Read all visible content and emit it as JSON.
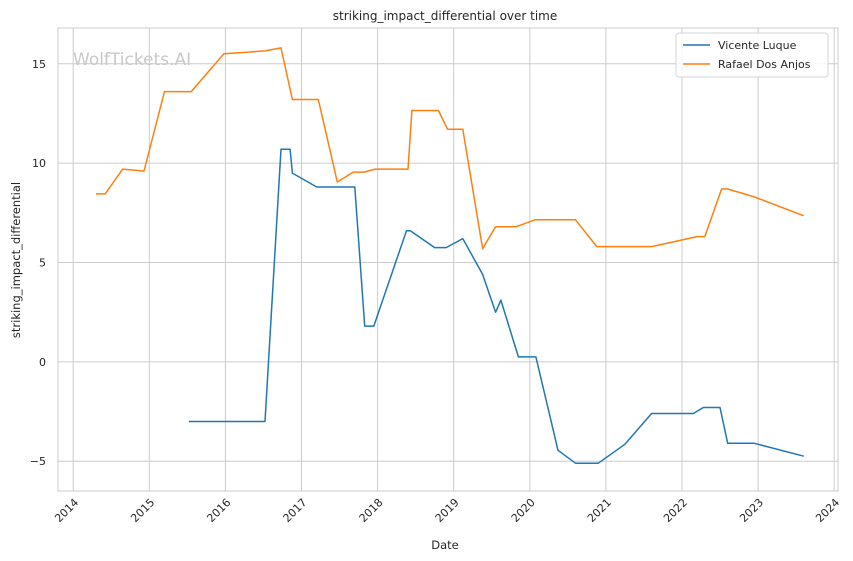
{
  "watermark": "WolfTickets.AI",
  "chart_data": {
    "type": "line",
    "title": "striking_impact_differential over time",
    "xlabel": "Date",
    "ylabel": "striking_impact_differential",
    "x_ticks": [
      "2014",
      "2015",
      "2016",
      "2017",
      "2018",
      "2019",
      "2020",
      "2021",
      "2022",
      "2023",
      "2024"
    ],
    "y_ticks": [
      -5,
      0,
      5,
      10,
      15
    ],
    "xlim": [
      2013.8,
      2024.05
    ],
    "ylim": [
      -6.5,
      16.8
    ],
    "grid": true,
    "legend_position": "top-right",
    "series": [
      {
        "name": "Vicente Luque",
        "color": "#1f77b4",
        "points": [
          [
            2015.52,
            -3.0
          ],
          [
            2016.52,
            -3.0
          ],
          [
            2016.73,
            10.7
          ],
          [
            2016.85,
            10.7
          ],
          [
            2016.88,
            9.5
          ],
          [
            2017.2,
            8.8
          ],
          [
            2017.7,
            8.8
          ],
          [
            2017.83,
            1.8
          ],
          [
            2017.95,
            1.8
          ],
          [
            2018.38,
            6.6
          ],
          [
            2018.43,
            6.6
          ],
          [
            2018.75,
            5.75
          ],
          [
            2018.9,
            5.75
          ],
          [
            2019.12,
            6.2
          ],
          [
            2019.38,
            4.4
          ],
          [
            2019.55,
            2.5
          ],
          [
            2019.62,
            3.1
          ],
          [
            2019.85,
            0.25
          ],
          [
            2020.08,
            0.25
          ],
          [
            2020.37,
            -4.45
          ],
          [
            2020.6,
            -5.1
          ],
          [
            2020.9,
            -5.1
          ],
          [
            2021.25,
            -4.15
          ],
          [
            2021.6,
            -2.6
          ],
          [
            2022.15,
            -2.6
          ],
          [
            2022.28,
            -2.3
          ],
          [
            2022.5,
            -2.3
          ],
          [
            2022.6,
            -4.1
          ],
          [
            2022.95,
            -4.1
          ],
          [
            2023.6,
            -4.75
          ]
        ]
      },
      {
        "name": "Rafael Dos Anjos",
        "color": "#ff7f0e",
        "points": [
          [
            2014.3,
            8.45
          ],
          [
            2014.42,
            8.45
          ],
          [
            2014.65,
            9.7
          ],
          [
            2014.93,
            9.6
          ],
          [
            2015.2,
            13.6
          ],
          [
            2015.55,
            13.6
          ],
          [
            2015.98,
            15.5
          ],
          [
            2016.52,
            15.65
          ],
          [
            2016.73,
            15.8
          ],
          [
            2016.88,
            13.2
          ],
          [
            2017.22,
            13.2
          ],
          [
            2017.47,
            9.05
          ],
          [
            2017.68,
            9.55
          ],
          [
            2017.82,
            9.55
          ],
          [
            2017.97,
            9.7
          ],
          [
            2018.4,
            9.7
          ],
          [
            2018.45,
            12.65
          ],
          [
            2018.8,
            12.65
          ],
          [
            2018.92,
            11.7
          ],
          [
            2019.12,
            11.7
          ],
          [
            2019.38,
            5.7
          ],
          [
            2019.55,
            6.8
          ],
          [
            2019.82,
            6.8
          ],
          [
            2020.07,
            7.15
          ],
          [
            2020.6,
            7.15
          ],
          [
            2020.88,
            5.8
          ],
          [
            2021.6,
            5.8
          ],
          [
            2022.2,
            6.3
          ],
          [
            2022.3,
            6.3
          ],
          [
            2022.52,
            8.7
          ],
          [
            2022.6,
            8.7
          ],
          [
            2022.95,
            8.3
          ],
          [
            2023.6,
            7.35
          ]
        ]
      }
    ]
  }
}
